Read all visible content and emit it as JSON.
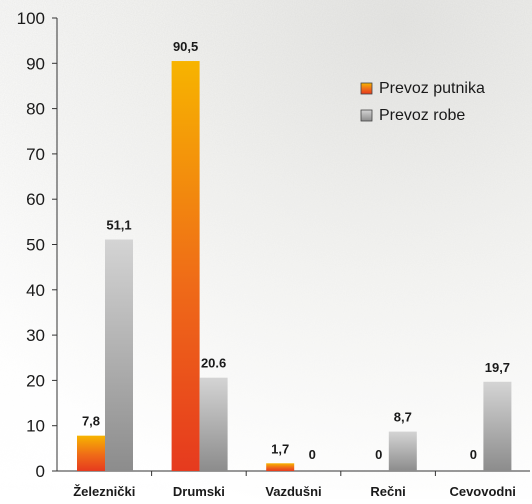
{
  "chart_data": {
    "type": "bar",
    "title": "",
    "xlabel": "",
    "ylabel": "",
    "categories": [
      "Železnički",
      "Drumski",
      "Vazdušni",
      "Rečni",
      "Cevovodni"
    ],
    "series": [
      {
        "name": "Prevoz putnika",
        "values": [
          7.8,
          90.5,
          1.7,
          0,
          0
        ],
        "labels": [
          "7,8",
          "90,5",
          "1,7",
          "0",
          "0"
        ],
        "color": "#e8501e"
      },
      {
        "name": "Prevoz robe",
        "values": [
          51.1,
          20.6,
          0,
          8.7,
          19.7
        ],
        "labels": [
          "51,1",
          "20.6",
          "0",
          "8,7",
          "19,7"
        ],
        "color": "#b4b4b4"
      }
    ],
    "ylim": [
      0,
      100
    ],
    "yticks": [
      0,
      10,
      20,
      30,
      40,
      50,
      60,
      70,
      80,
      90,
      100
    ],
    "grid": false,
    "legend_position": "top-right"
  }
}
